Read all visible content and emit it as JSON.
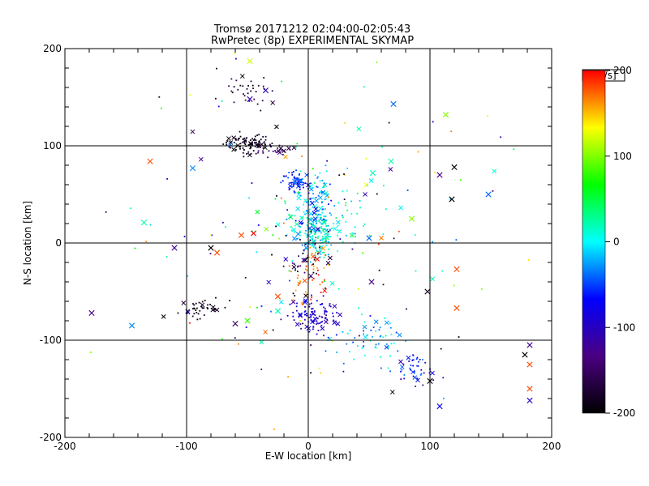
{
  "chart_data": {
    "type": "scatter",
    "title": "Tromsø 20171212 02:04:00-02:05:43",
    "subtitle": "RwPretec (8p) EXPERIMENTAL SKYMAP",
    "xlabel": "E-W location [km]",
    "ylabel": "N-S location [km]",
    "xlim": [
      -200,
      200
    ],
    "ylim": [
      -200,
      200
    ],
    "xticks": [
      "-200",
      "-100",
      "0",
      "100",
      "200"
    ],
    "yticks": [
      "-200",
      "-100",
      "0",
      "100",
      "200"
    ],
    "grid": true,
    "colorbar": {
      "unit": "[m/s]",
      "range": [
        -200,
        200
      ],
      "ticks": [
        "200",
        "100",
        "0",
        "-100",
        "-200"
      ],
      "colormap": [
        "#000000",
        "#4b0082",
        "#0000ff",
        "#00ffff",
        "#00ff00",
        "#ffff00",
        "#ff0000"
      ]
    },
    "clusters": [
      {
        "cx": -50,
        "cy": 102,
        "sx": 10,
        "sy": 5,
        "n": 90,
        "vmin": -200,
        "vmax": -170
      },
      {
        "cx": -50,
        "cy": 157,
        "sx": 12,
        "sy": 10,
        "n": 35,
        "vmin": -200,
        "vmax": -150
      },
      {
        "cx": -25,
        "cy": 95,
        "sx": 8,
        "sy": 3,
        "n": 25,
        "vmin": -170,
        "vmax": -130
      },
      {
        "cx": -85,
        "cy": -68,
        "sx": 10,
        "sy": 5,
        "n": 40,
        "vmin": -200,
        "vmax": -175
      },
      {
        "cx": 5,
        "cy": 12,
        "sx": 8,
        "sy": 12,
        "n": 180,
        "vmin": -40,
        "vmax": 40
      },
      {
        "cx": -10,
        "cy": 62,
        "sx": 6,
        "sy": 6,
        "n": 60,
        "vmin": -100,
        "vmax": -40
      },
      {
        "cx": 5,
        "cy": 45,
        "sx": 8,
        "sy": 15,
        "n": 70,
        "vmin": -80,
        "vmax": 20
      },
      {
        "cx": 5,
        "cy": -75,
        "sx": 9,
        "sy": 9,
        "n": 100,
        "vmin": -120,
        "vmax": -70
      },
      {
        "cx": 0,
        "cy": -30,
        "sx": 8,
        "sy": 15,
        "n": 50,
        "vmin": 150,
        "vmax": 200
      },
      {
        "cx": 0,
        "cy": -20,
        "sx": 10,
        "sy": 20,
        "n": 40,
        "vmin": -200,
        "vmax": -100
      },
      {
        "cx": 90,
        "cy": -130,
        "sx": 8,
        "sy": 8,
        "n": 45,
        "vmin": -120,
        "vmax": -30
      },
      {
        "cx": 50,
        "cy": -100,
        "sx": 15,
        "sy": 12,
        "n": 60,
        "vmin": -60,
        "vmax": 30
      },
      {
        "cx": 20,
        "cy": 30,
        "sx": 25,
        "sy": 30,
        "n": 80,
        "vmin": -30,
        "vmax": 60
      },
      {
        "cx": 0,
        "cy": 0,
        "sx": 80,
        "sy": 90,
        "n": 150,
        "vmin": -200,
        "vmax": 200
      }
    ],
    "crosses": [
      {
        "x": -48,
        "y": 187,
        "v": 120
      },
      {
        "x": -48,
        "y": 148,
        "v": -110
      },
      {
        "x": -35,
        "y": 157,
        "v": -110
      },
      {
        "x": 70,
        "y": 143,
        "v": -40
      },
      {
        "x": 113,
        "y": 132,
        "v": 100
      },
      {
        "x": -130,
        "y": 84,
        "v": 180
      },
      {
        "x": 68,
        "y": 84,
        "v": 20
      },
      {
        "x": 53,
        "y": 72,
        "v": 20
      },
      {
        "x": -95,
        "y": 77,
        "v": -30
      },
      {
        "x": 108,
        "y": 70,
        "v": -130
      },
      {
        "x": 120,
        "y": 78,
        "v": -200
      },
      {
        "x": 118,
        "y": 45,
        "v": -200
      },
      {
        "x": 148,
        "y": 50,
        "v": -40
      },
      {
        "x": -135,
        "y": 21,
        "v": 20
      },
      {
        "x": 85,
        "y": 25,
        "v": 100
      },
      {
        "x": -110,
        "y": -5,
        "v": -120
      },
      {
        "x": -80,
        "y": -5,
        "v": -200
      },
      {
        "x": -55,
        "y": 8,
        "v": 180
      },
      {
        "x": -45,
        "y": 10,
        "v": 200
      },
      {
        "x": -75,
        "y": -10,
        "v": 180
      },
      {
        "x": 50,
        "y": 5,
        "v": -40
      },
      {
        "x": 122,
        "y": -27,
        "v": 180
      },
      {
        "x": -25,
        "y": -55,
        "v": 180
      },
      {
        "x": -25,
        "y": -70,
        "v": 20
      },
      {
        "x": 52,
        "y": -40,
        "v": -130
      },
      {
        "x": 98,
        "y": -50,
        "v": -180
      },
      {
        "x": 122,
        "y": -67,
        "v": 180
      },
      {
        "x": -178,
        "y": -72,
        "v": -130
      },
      {
        "x": -145,
        "y": -85,
        "v": -30
      },
      {
        "x": -60,
        "y": -83,
        "v": -150
      },
      {
        "x": -50,
        "y": -80,
        "v": 80
      },
      {
        "x": 100,
        "y": -142,
        "v": -200
      },
      {
        "x": 108,
        "y": -168,
        "v": -70
      },
      {
        "x": 178,
        "y": -115,
        "v": -200
      },
      {
        "x": 182,
        "y": -105,
        "v": -120
      },
      {
        "x": 182,
        "y": -125,
        "v": 180
      },
      {
        "x": 182,
        "y": -150,
        "v": 180
      },
      {
        "x": 182,
        "y": -162,
        "v": -90
      }
    ]
  }
}
